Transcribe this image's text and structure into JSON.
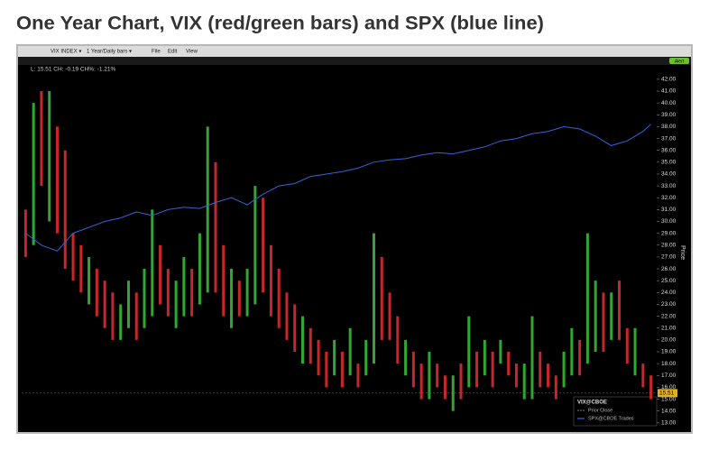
{
  "chart_data": {
    "type": "range_bar",
    "title": "One Year Chart, VIX (red/green bars) and SPX (blue line)",
    "toolbar": [
      "VIX INDEX ▾",
      "1 Year/Daily bars ▾",
      "File",
      "Edit",
      "View"
    ],
    "alert": "Alert",
    "status": "L: 15.51 CH: -0.19 CH%: -1.21%",
    "last_price": 15.51,
    "y_label": "Price",
    "up_color": "#2ea82e",
    "down_color": "#c8262c",
    "xlim": [
      -0.5,
      79.5
    ],
    "ylim": [
      12.3,
      42.6
    ],
    "yticks": [
      {
        "value": 13,
        "label": "13.00"
      },
      {
        "value": 14,
        "label": "14.00"
      },
      {
        "value": 15,
        "label": "15.00"
      },
      {
        "value": 16,
        "label": "16.00"
      },
      {
        "value": 17,
        "label": "17.00"
      },
      {
        "value": 18,
        "label": "18.00"
      },
      {
        "value": 19,
        "label": "19.00"
      },
      {
        "value": 20,
        "label": "20.00"
      },
      {
        "value": 21,
        "label": "21.00"
      },
      {
        "value": 22,
        "label": "22.00"
      },
      {
        "value": 23,
        "label": "23.00"
      },
      {
        "value": 24,
        "label": "24.00"
      },
      {
        "value": 25,
        "label": "25.00"
      },
      {
        "value": 26,
        "label": "26.00"
      },
      {
        "value": 27,
        "label": "27.00"
      },
      {
        "value": 28,
        "label": "28.00"
      },
      {
        "value": 29,
        "label": "29.00"
      },
      {
        "value": 30,
        "label": "30.00"
      },
      {
        "value": 31,
        "label": "31.00"
      },
      {
        "value": 32,
        "label": "32.00"
      },
      {
        "value": 33,
        "label": "33.00"
      },
      {
        "value": 34,
        "label": "34.00"
      },
      {
        "value": 35,
        "label": "35.00"
      },
      {
        "value": 36,
        "label": "36.00"
      },
      {
        "value": 37,
        "label": "37.00"
      },
      {
        "value": 38,
        "label": "38.00"
      },
      {
        "value": 39,
        "label": "39.00"
      },
      {
        "value": 40,
        "label": "40.00"
      },
      {
        "value": 41,
        "label": "41.00"
      },
      {
        "value": 42,
        "label": "42.00"
      }
    ],
    "bars": {
      "low": [
        27,
        28,
        33,
        30,
        29,
        26,
        25,
        24,
        23,
        22,
        21,
        20,
        20,
        21,
        20,
        21,
        22,
        23,
        22,
        21,
        22,
        22,
        23,
        24,
        24,
        22,
        21,
        22,
        22,
        23,
        24,
        22,
        21,
        20,
        19,
        18,
        18,
        17,
        16,
        17,
        16,
        17,
        16,
        17,
        18,
        20,
        20,
        18,
        17,
        16,
        15,
        15,
        16,
        15,
        14,
        15,
        16,
        16,
        17,
        16,
        18,
        17,
        16,
        15,
        15,
        16,
        16,
        15,
        16,
        17,
        17,
        18,
        19,
        19,
        20,
        20,
        18,
        17,
        16,
        15
      ],
      "high": [
        31,
        40,
        41,
        41,
        38,
        36,
        29,
        28,
        27,
        26,
        25,
        24,
        23,
        25,
        24,
        26,
        31,
        28,
        26,
        25,
        27,
        26,
        29,
        38,
        35,
        28,
        26,
        25,
        26,
        33,
        32,
        28,
        26,
        24,
        23,
        22,
        21,
        20,
        19,
        20,
        19,
        21,
        18,
        20,
        29,
        27,
        24,
        22,
        20,
        19,
        18,
        19,
        18,
        17,
        17,
        18,
        22,
        19,
        20,
        19,
        20,
        19,
        18,
        18,
        22,
        19,
        18,
        17,
        19,
        21,
        20,
        29,
        25,
        24,
        24,
        25,
        21,
        21,
        18,
        17
      ],
      "up": [
        false,
        true,
        false,
        true,
        false,
        false,
        false,
        false,
        true,
        false,
        false,
        false,
        true,
        true,
        false,
        true,
        true,
        false,
        false,
        true,
        true,
        false,
        true,
        true,
        false,
        false,
        true,
        false,
        true,
        true,
        false,
        false,
        false,
        false,
        false,
        true,
        false,
        false,
        false,
        true,
        false,
        true,
        false,
        true,
        true,
        false,
        false,
        false,
        true,
        false,
        false,
        true,
        false,
        false,
        true,
        false,
        true,
        false,
        true,
        false,
        true,
        false,
        false,
        true,
        true,
        false,
        false,
        false,
        true,
        true,
        false,
        true,
        true,
        false,
        true,
        false,
        false,
        true,
        false,
        false
      ]
    },
    "legend": {
      "title": "VIX@CBOE",
      "prior": "Prior Close",
      "spx": "SPX@CBOE Trades"
    },
    "spx": {
      "color": "#3563d8",
      "x": [
        0,
        2,
        4,
        6,
        8,
        10,
        12,
        14,
        16,
        18,
        20,
        22,
        24,
        26,
        28,
        30,
        32,
        34,
        36,
        38,
        40,
        42,
        44,
        46,
        48,
        50,
        52,
        54,
        56,
        58,
        60,
        62,
        64,
        66,
        68,
        70,
        72,
        74,
        76,
        78,
        79
      ],
      "values": [
        29,
        28,
        27.5,
        29,
        29.5,
        30,
        30.3,
        30.8,
        30.5,
        31,
        31.2,
        31.1,
        31.6,
        32,
        31.4,
        32.3,
        33,
        33.2,
        33.8,
        34,
        34.2,
        34.5,
        35,
        35.2,
        35.3,
        35.6,
        35.8,
        35.7,
        36,
        36.3,
        36.8,
        37,
        37.4,
        37.6,
        38,
        37.8,
        37.2,
        36.4,
        36.8,
        37.6,
        38.2
      ]
    }
  }
}
